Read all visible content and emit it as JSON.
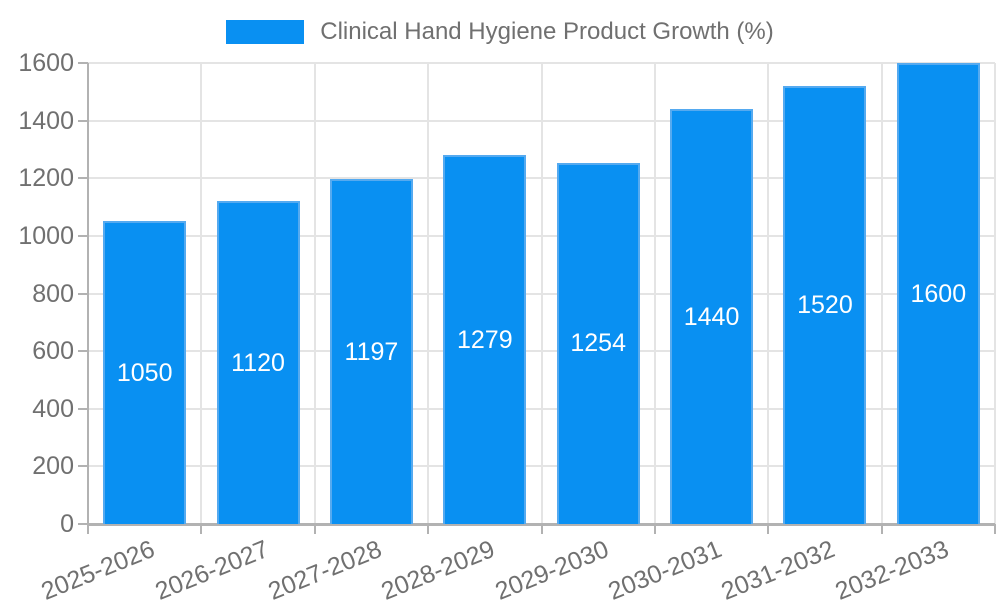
{
  "chart_data": {
    "type": "bar",
    "title": "",
    "legend_label": "Clinical Hand Hygiene Product Growth (%)",
    "legend_position": "top",
    "categories": [
      "2025-2026",
      "2026-2027",
      "2027-2028",
      "2028-2029",
      "2029-2030",
      "2030-2031",
      "2031-2032",
      "2032-2033"
    ],
    "series": [
      {
        "name": "Clinical Hand Hygiene Product Growth (%)",
        "values": [
          1050,
          1120,
          1197,
          1279,
          1254,
          1440,
          1520,
          1600
        ]
      }
    ],
    "value_labels": [
      "1050",
      "1120",
      "1197",
      "1279",
      "1254",
      "1440",
      "1520",
      "1600"
    ],
    "value_labels_shown": true,
    "xlabel": "",
    "ylabel": "",
    "ylim": [
      0,
      1600
    ],
    "yticks": [
      0,
      200,
      400,
      600,
      800,
      1000,
      1200,
      1400,
      1600
    ],
    "grid": true,
    "colors": {
      "bar_fill": "#0990f2",
      "bar_border": "#55aaf0",
      "value_label_text": "#ffffff",
      "grid_line": "#e4e4e4",
      "axis_line": "#b2b2b2",
      "tick_label_text": "#707070",
      "legend_text": "#707070",
      "background": "#ffffff"
    }
  }
}
